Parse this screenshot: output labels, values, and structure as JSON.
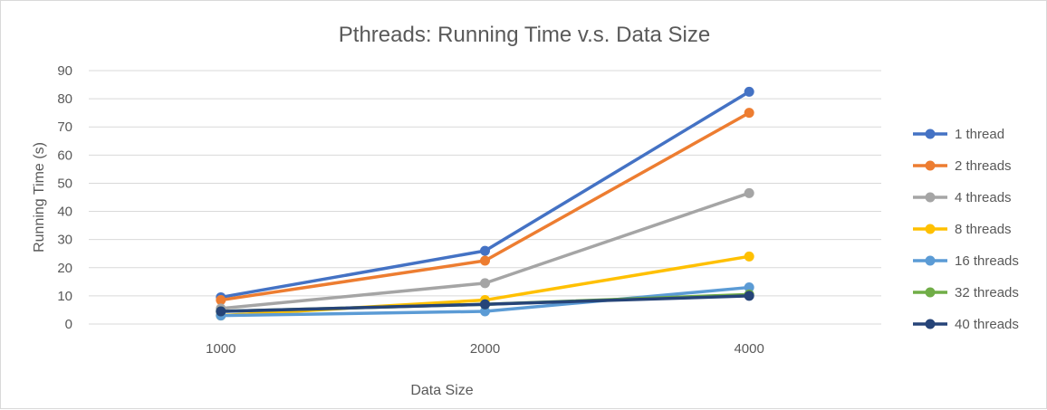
{
  "chart_data": {
    "type": "line",
    "title": "Pthreads: Running Time v.s. Data Size",
    "xlabel": "Data Size",
    "ylabel": "Running Time (s)",
    "categories": [
      "1000",
      "2000",
      "4000"
    ],
    "ylim": [
      0,
      90
    ],
    "yticks": [
      "0",
      "10",
      "20",
      "30",
      "40",
      "50",
      "60",
      "70",
      "80",
      "90"
    ],
    "grid": true,
    "legend_position": "right",
    "series": [
      {
        "name": "1 thread",
        "color": "#4472c4",
        "values": [
          9.5,
          26,
          82.5
        ]
      },
      {
        "name": "2 threads",
        "color": "#ed7d31",
        "values": [
          8.5,
          22.5,
          75
        ]
      },
      {
        "name": "4 threads",
        "color": "#a5a5a5",
        "values": [
          5.5,
          14.5,
          46.5
        ]
      },
      {
        "name": "8 threads",
        "color": "#ffc000",
        "values": [
          3,
          8.5,
          24
        ]
      },
      {
        "name": "16 threads",
        "color": "#5b9bd5",
        "values": [
          3,
          4.5,
          13
        ]
      },
      {
        "name": "32 threads",
        "color": "#70ad47",
        "values": [
          4.5,
          7,
          10.5
        ]
      },
      {
        "name": "40 threads",
        "color": "#264478",
        "values": [
          4.5,
          7,
          10
        ]
      }
    ]
  }
}
